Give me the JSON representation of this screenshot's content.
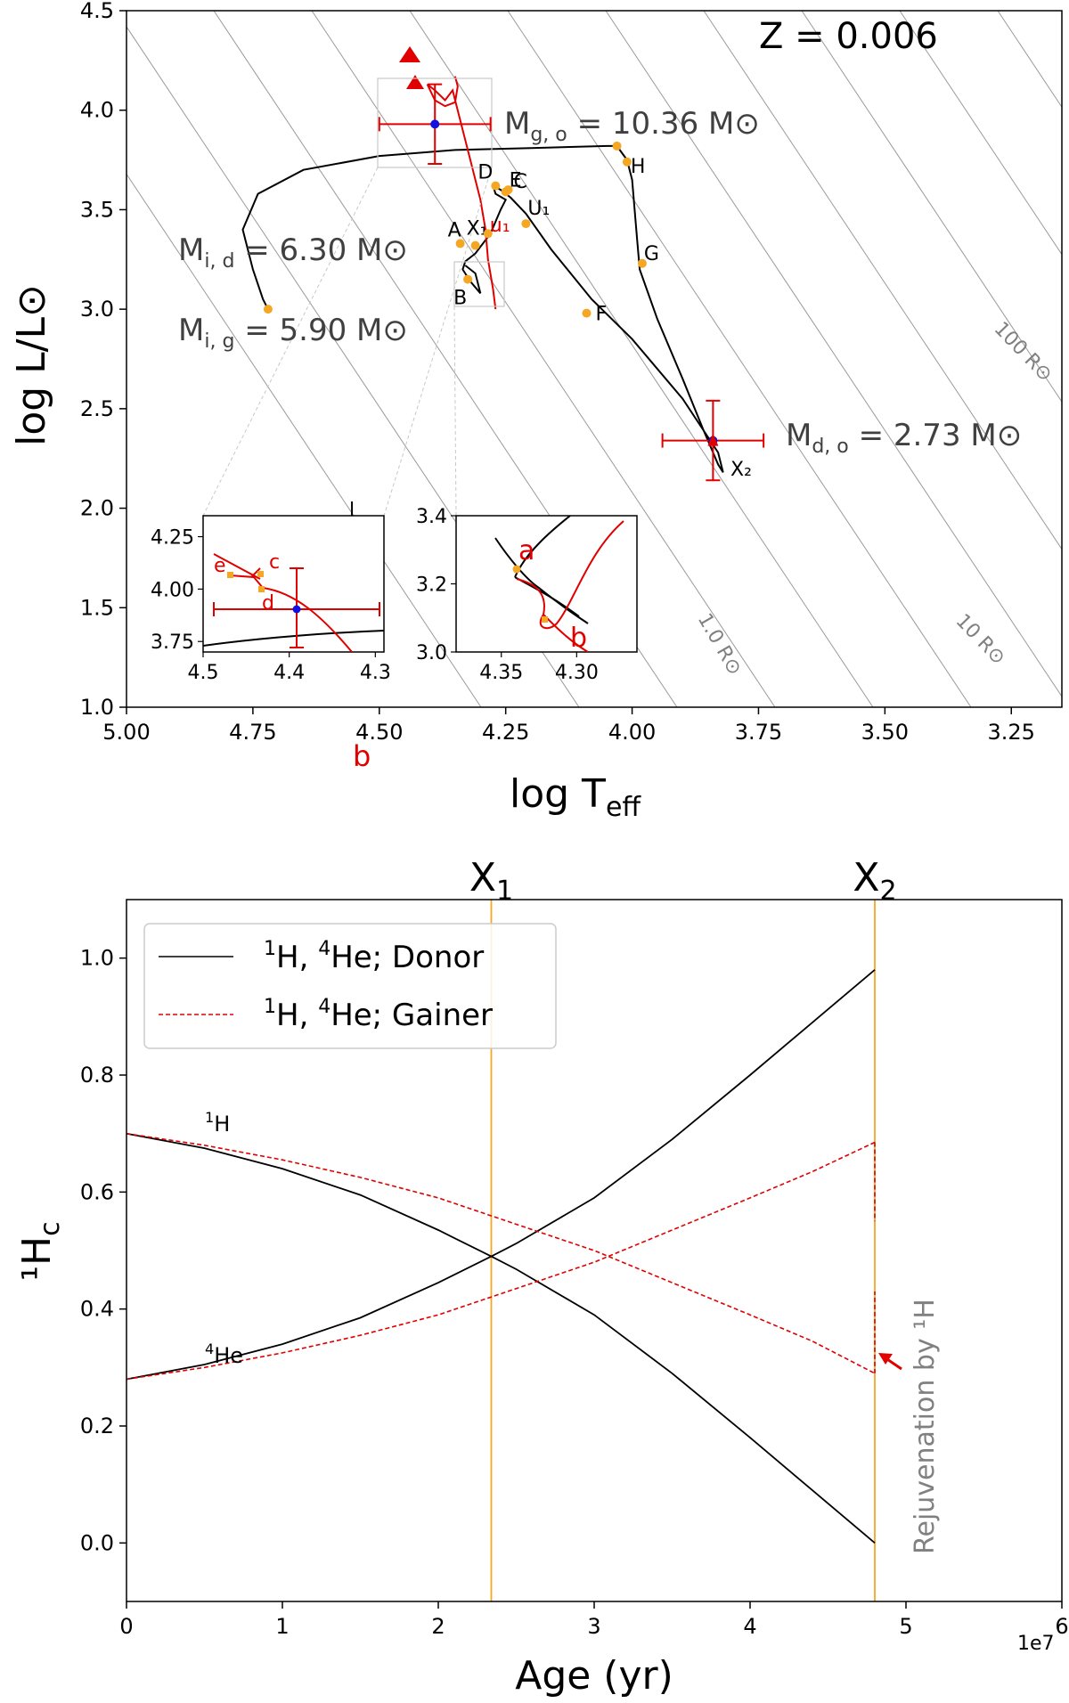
{
  "chart_data": [
    {
      "type": "line",
      "xlabel": "log T",
      "xlabel_sub": "eff",
      "ylabel": "log L/L⊙",
      "xlim": [
        5.0,
        3.15
      ],
      "ylim": [
        1.0,
        4.5
      ],
      "x_ticks": [
        "5.00",
        "4.75",
        "4.50",
        "4.25",
        "4.00",
        "3.75",
        "3.50",
        "3.25"
      ],
      "y_ticks": [
        "1.0",
        "1.5",
        "2.0",
        "2.5",
        "3.0",
        "3.5",
        "4.0",
        "4.5"
      ],
      "annotation_z": "Z = 0.006",
      "mass_labels": {
        "mgo": {
          "text": "M",
          "sub": "g, o",
          "value": " = 10.36 M⊙"
        },
        "mid": {
          "text": "M",
          "sub": "i, d",
          "value": " = 6.30 M⊙"
        },
        "mig": {
          "text": "M",
          "sub": "i, g",
          "value": " = 5.90 M⊙"
        },
        "mdo": {
          "text": "M",
          "sub": "d, o",
          "value": " = 2.73 M⊙"
        }
      },
      "radius_labels": [
        "100 R⊙",
        "10 R⊙",
        "1.0 R⊙"
      ],
      "stray_label": "b",
      "stray_tick": "l",
      "series": [
        {
          "color": "#000000",
          "points": [
            [
              4.72,
              3.0
            ],
            [
              4.73,
              3.05
            ],
            [
              4.75,
              3.2
            ],
            [
              4.77,
              3.4
            ],
            [
              4.74,
              3.58
            ],
            [
              4.65,
              3.7
            ],
            [
              4.5,
              3.77
            ],
            [
              4.35,
              3.8
            ],
            [
              4.2,
              3.81
            ],
            [
              4.05,
              3.82
            ],
            [
              4.03,
              3.82
            ],
            [
              4.01,
              3.75
            ],
            [
              4.0,
              3.65
            ],
            [
              3.995,
              3.5
            ],
            [
              3.99,
              3.35
            ],
            [
              3.985,
              3.2
            ],
            [
              3.95,
              2.95
            ],
            [
              3.9,
              2.65
            ],
            [
              3.86,
              2.4
            ],
            [
              3.83,
              2.22
            ],
            [
              3.82,
              2.18
            ],
            [
              3.83,
              2.28
            ],
            [
              3.9,
              2.55
            ],
            [
              4.0,
              2.85
            ],
            [
              4.08,
              3.05
            ],
            [
              4.16,
              3.3
            ],
            [
              4.21,
              3.48
            ],
            [
              4.24,
              3.56
            ],
            [
              4.26,
              3.6
            ],
            [
              4.275,
              3.62
            ],
            [
              4.27,
              3.58
            ],
            [
              4.25,
              3.55
            ],
            [
              4.26,
              3.5
            ],
            [
              4.28,
              3.38
            ],
            [
              4.31,
              3.28
            ],
            [
              4.33,
              3.24
            ],
            [
              4.335,
              3.2
            ],
            [
              4.32,
              3.14
            ],
            [
              4.3,
              3.08
            ],
            [
              4.31,
              3.18
            ],
            [
              4.33,
              3.22
            ]
          ]
        },
        {
          "color": "#e00000",
          "points": [
            [
              4.27,
              3.0
            ],
            [
              4.275,
              3.1
            ],
            [
              4.285,
              3.25
            ],
            [
              4.29,
              3.4
            ],
            [
              4.3,
              3.55
            ],
            [
              4.315,
              3.7
            ],
            [
              4.33,
              3.85
            ],
            [
              4.34,
              3.95
            ],
            [
              4.35,
              4.05
            ],
            [
              4.355,
              4.1
            ],
            [
              4.37,
              4.05
            ],
            [
              4.39,
              4.1
            ],
            [
              4.405,
              4.13
            ],
            [
              4.39,
              4.05
            ],
            [
              4.37,
              4.02
            ],
            [
              4.35,
              4.04
            ],
            [
              4.345,
              4.12
            ],
            [
              4.35,
              4.17
            ]
          ]
        }
      ],
      "points": [
        {
          "label": "A",
          "x": 4.34,
          "y": 3.33,
          "color": "#000000",
          "marker": "#f5a623"
        },
        {
          "label": "B",
          "x": 4.325,
          "y": 3.15,
          "color": "#000000",
          "marker": "#f5a623"
        },
        {
          "label": "C",
          "x": 4.245,
          "y": 3.6,
          "color": "#000000",
          "marker": "#f5a623"
        },
        {
          "label": "D",
          "x": 4.27,
          "y": 3.62,
          "color": "#000000",
          "marker": "#f5a623"
        },
        {
          "label": "E",
          "x": 4.25,
          "y": 3.59,
          "color": "#000000",
          "marker": "#f5a623"
        },
        {
          "label": "F",
          "x": 4.09,
          "y": 2.98,
          "color": "#000000",
          "marker": "#f5a623"
        },
        {
          "label": "G",
          "x": 3.98,
          "y": 3.23,
          "color": "#000000",
          "marker": "#f5a623"
        },
        {
          "label": "H",
          "x": 4.01,
          "y": 3.74,
          "color": "#000000",
          "marker": "#f5a623"
        },
        {
          "label": "X₁",
          "x": 4.31,
          "y": 3.32,
          "color": "#000000",
          "marker": "#f5a623"
        },
        {
          "label": "U₁",
          "x": 4.21,
          "y": 3.43,
          "color": "#000000",
          "marker": "#f5a623"
        },
        {
          "label": "X₂",
          "x": 3.83,
          "y": 2.2,
          "color": "#000000",
          "marker": ""
        },
        {
          "label": "u₁",
          "x": 4.285,
          "y": 3.38,
          "color": "#e00000",
          "marker": "#f5a623"
        },
        {
          "label": "",
          "x": 4.72,
          "y": 3.0,
          "color": "#000000",
          "marker": "#f5a623"
        },
        {
          "label": "",
          "x": 4.03,
          "y": 3.82,
          "color": "#000000",
          "marker": "#f5a623"
        }
      ],
      "obs": [
        {
          "x": 4.39,
          "y": 3.93,
          "xerr": 0.11,
          "yerr": 0.2
        },
        {
          "x": 3.84,
          "y": 2.34,
          "xerr": 0.1,
          "yerr": 0.2
        }
      ],
      "insets": [
        {
          "xlim": [
            4.5,
            4.29
          ],
          "ylim": [
            3.7,
            4.35
          ],
          "x_ticks": [
            "4.5",
            "4.4",
            "4.3"
          ],
          "y_ticks": [
            "3.75",
            "4.00",
            "4.25"
          ],
          "labels": [
            "e",
            "c",
            "d"
          ]
        },
        {
          "xlim": [
            4.38,
            4.26
          ],
          "ylim": [
            3.0,
            3.4
          ],
          "x_ticks": [
            "4.35",
            "4.30"
          ],
          "y_ticks": [
            "3.0",
            "3.2",
            "3.4"
          ],
          "labels": [
            "a",
            "b"
          ]
        }
      ]
    },
    {
      "type": "line",
      "xlabel": "Age (yr)",
      "ylabel": "¹H",
      "ylabel_sub": "c",
      "xlim": [
        0,
        60000000.0
      ],
      "ylim": [
        -0.1,
        1.1
      ],
      "x_ticks": [
        "0",
        "1",
        "2",
        "3",
        "4",
        "5",
        "6"
      ],
      "y_ticks": [
        "0.0",
        "0.2",
        "0.4",
        "0.6",
        "0.8",
        "1.0"
      ],
      "x_offset_label": "1e7",
      "vlines": [
        {
          "x": 23400000.0,
          "label": "X",
          "sub": "1"
        },
        {
          "x": 48000000.0,
          "label": "X",
          "sub": "2"
        }
      ],
      "legend": [
        {
          "sup": "1",
          "text1": "H, ",
          "sup2": "4",
          "text2": "He; Donor",
          "color": "#000000",
          "style": "solid"
        },
        {
          "sup": "1",
          "text1": "H, ",
          "sup2": "4",
          "text2": "He; Gainer",
          "color": "#e00000",
          "style": "dashed"
        }
      ],
      "curve_labels": [
        {
          "sup": "1",
          "text": "H",
          "x": 5000000.0,
          "y": 0.725
        },
        {
          "sup": "4",
          "text": "He",
          "x": 5000000.0,
          "y": 0.315
        }
      ],
      "annotation": "Rejuvenation by ¹H",
      "series": [
        {
          "name": "Donor 1H",
          "color": "#000000",
          "style": "solid",
          "x": [
            0,
            5000000.0,
            10000000.0,
            15000000.0,
            20000000.0,
            23400000.0,
            25000000.0,
            30000000.0,
            35000000.0,
            40000000.0,
            44000000.0,
            48000000.0
          ],
          "values": [
            0.7,
            0.675,
            0.64,
            0.595,
            0.535,
            0.49,
            0.468,
            0.39,
            0.29,
            0.18,
            0.09,
            0.0
          ]
        },
        {
          "name": "Donor 4He",
          "color": "#000000",
          "style": "solid",
          "x": [
            0,
            5000000.0,
            10000000.0,
            15000000.0,
            20000000.0,
            23400000.0,
            25000000.0,
            30000000.0,
            35000000.0,
            40000000.0,
            44000000.0,
            48000000.0
          ],
          "values": [
            0.28,
            0.305,
            0.34,
            0.385,
            0.445,
            0.49,
            0.512,
            0.59,
            0.69,
            0.8,
            0.89,
            0.98
          ]
        },
        {
          "name": "Gainer 1H",
          "color": "#e00000",
          "style": "dashed",
          "x": [
            0,
            5000000.0,
            10000000.0,
            15000000.0,
            20000000.0,
            25000000.0,
            30000000.0,
            35000000.0,
            40000000.0,
            44000000.0,
            48000000.0
          ],
          "values": [
            0.7,
            0.68,
            0.655,
            0.625,
            0.59,
            0.545,
            0.5,
            0.445,
            0.39,
            0.345,
            0.29
          ]
        },
        {
          "name": "Gainer 4He",
          "color": "#e00000",
          "style": "dashed",
          "x": [
            0,
            5000000.0,
            10000000.0,
            15000000.0,
            20000000.0,
            25000000.0,
            30000000.0,
            35000000.0,
            40000000.0,
            44000000.0,
            48000000.0
          ],
          "values": [
            0.28,
            0.3,
            0.325,
            0.355,
            0.39,
            0.435,
            0.48,
            0.535,
            0.59,
            0.635,
            0.685
          ]
        }
      ]
    }
  ]
}
